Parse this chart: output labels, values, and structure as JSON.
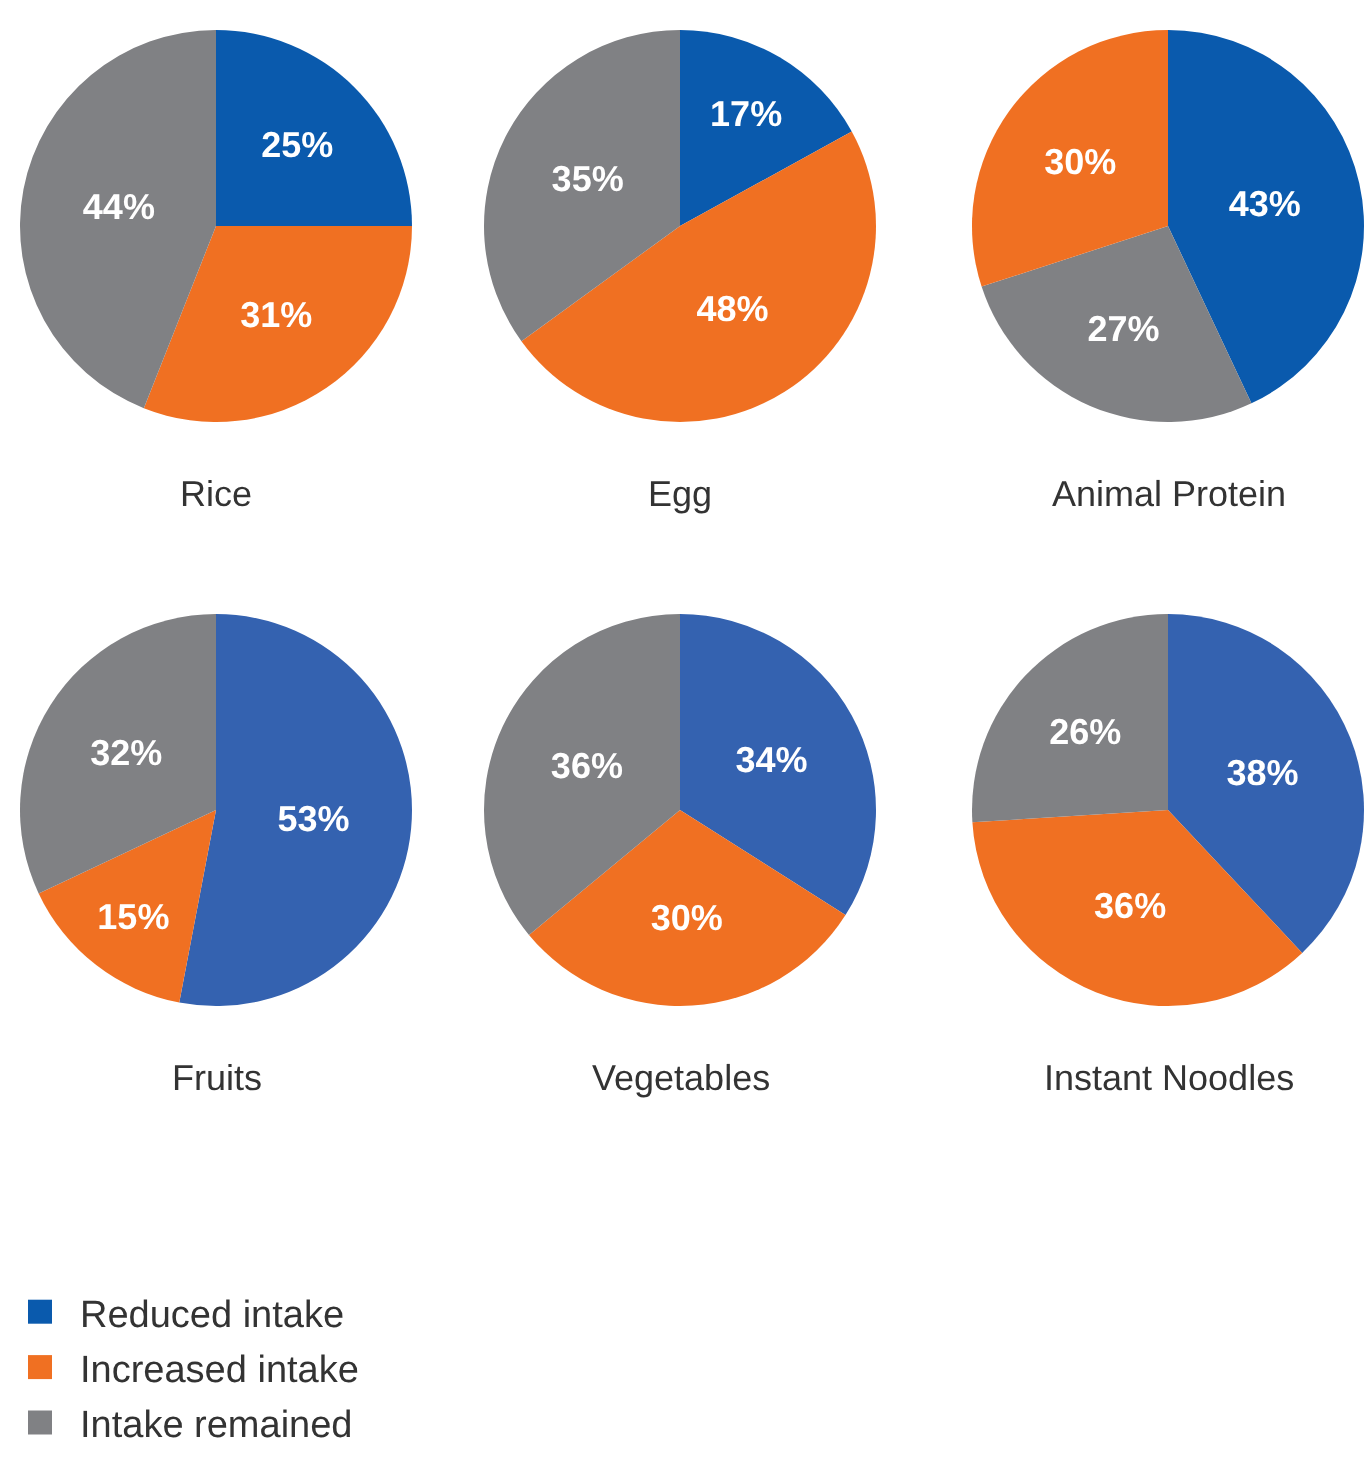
{
  "chart_data": [
    {
      "type": "pie",
      "title": "Rice",
      "categories": [
        "Reduced intake",
        "Increased intake",
        "Intake remained"
      ],
      "values": [
        25,
        31,
        44
      ],
      "value_labels": [
        "25%",
        "31%",
        "44%"
      ],
      "colors": [
        "#0a5aad",
        "#f07022",
        "#808184"
      ],
      "legend": "bottom"
    },
    {
      "type": "pie",
      "title": "Egg",
      "categories": [
        null,
        null,
        null
      ],
      "values": [
        17,
        48,
        35
      ],
      "value_labels": [
        "17%",
        "48%",
        "35%"
      ],
      "colors": [
        "#0a5aad",
        "#f07022",
        "#808184"
      ]
    },
    {
      "type": "pie",
      "title": "Animal Protein",
      "categories": [
        null,
        null,
        null
      ],
      "values": [
        43,
        27,
        30
      ],
      "value_labels": [
        "43%",
        "27%",
        "30%"
      ],
      "colors": [
        "#0a5aad",
        "#808184",
        "#f07022"
      ]
    },
    {
      "type": "pie",
      "title": "Fruits",
      "categories": [
        null,
        null,
        null
      ],
      "values": [
        53,
        15,
        32
      ],
      "value_labels": [
        "53%",
        "15%",
        "32%"
      ],
      "colors": [
        "#3462b0",
        "#f07022",
        "#808184"
      ]
    },
    {
      "type": "pie",
      "title": "Vegetables",
      "categories": [
        null,
        null,
        null
      ],
      "values": [
        34,
        30,
        36
      ],
      "value_labels": [
        "34%",
        "30%",
        "36%"
      ],
      "colors": [
        "#3462b0",
        "#f07022",
        "#808184"
      ]
    },
    {
      "type": "pie",
      "title": "Instant Noodles",
      "categories": [
        null,
        null,
        null
      ],
      "values": [
        38,
        36,
        26
      ],
      "value_labels": [
        "38%",
        "36%",
        "26%"
      ],
      "colors": [
        "#3462b0",
        "#f07022",
        "#808184"
      ]
    }
  ]
}
